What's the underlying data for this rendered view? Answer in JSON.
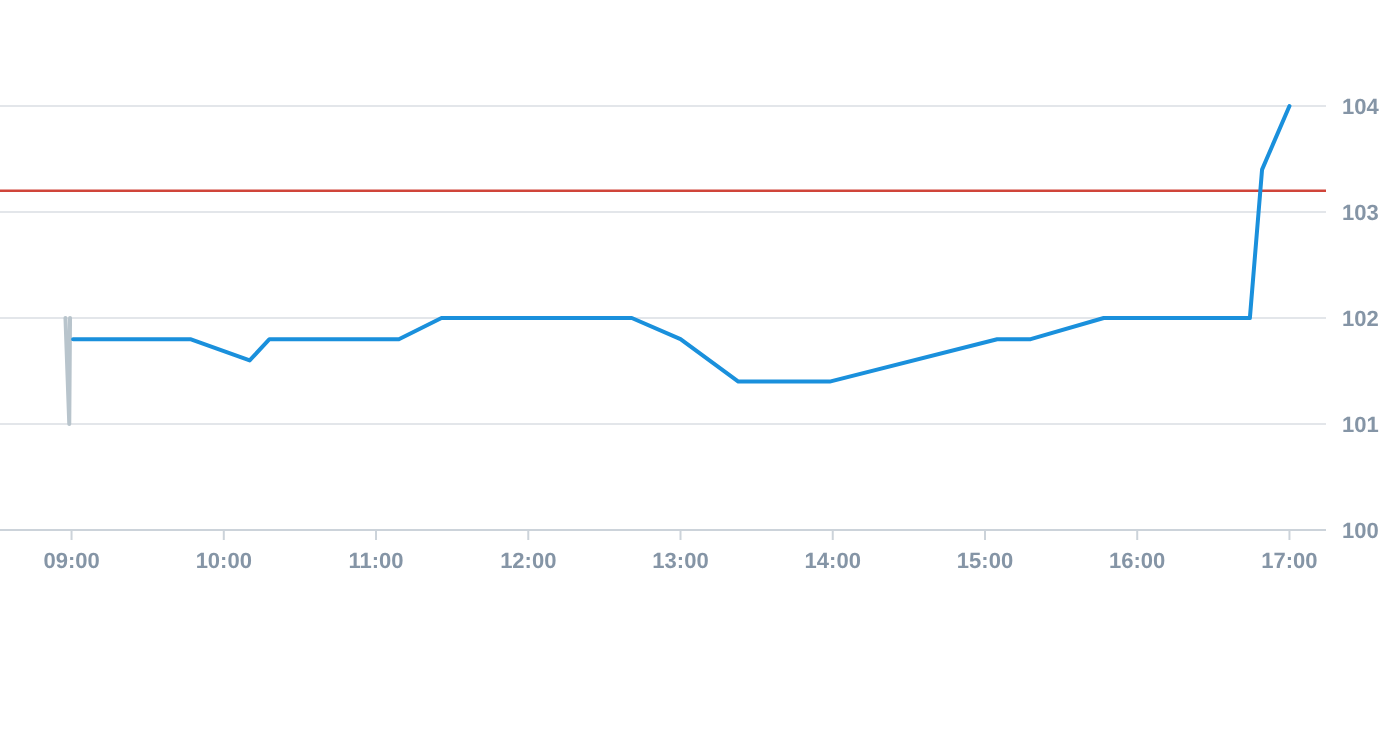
{
  "chart_data": {
    "type": "line",
    "xlim": [
      8.53,
      17.24
    ],
    "xticks": [
      {
        "value": 9,
        "label": "09:00"
      },
      {
        "value": 10,
        "label": "10:00"
      },
      {
        "value": 11,
        "label": "11:00"
      },
      {
        "value": 12,
        "label": "12:00"
      },
      {
        "value": 13,
        "label": "13:00"
      },
      {
        "value": 14,
        "label": "14:00"
      },
      {
        "value": 15,
        "label": "15:00"
      },
      {
        "value": 16,
        "label": "16:00"
      },
      {
        "value": 17,
        "label": "17:00"
      }
    ],
    "ylim": [
      100,
      104
    ],
    "yticks": [
      100,
      101,
      102,
      103,
      104
    ],
    "grid": "y",
    "line_style": "solid",
    "marker": "none",
    "ref_lines": [
      {
        "axis": "y",
        "value": 103.2,
        "color": "#d0453a"
      }
    ],
    "series": [
      {
        "color": "#b8c4cc",
        "x": [
          8.96,
          8.985,
          8.99
        ],
        "values": [
          102,
          101,
          102
        ]
      },
      {
        "color": "#1a90dc",
        "x": [
          9.01,
          9.78,
          10.17,
          10.3,
          11.15,
          11.43,
          12.68,
          13.0,
          13.38,
          13.98,
          15.08,
          15.3,
          15.78,
          16.74,
          16.82,
          17.0
        ],
        "values": [
          101.8,
          101.8,
          101.6,
          101.8,
          101.8,
          102,
          102,
          101.8,
          101.4,
          101.4,
          101.8,
          101.8,
          102,
          102,
          103.4,
          104
        ]
      }
    ]
  }
}
